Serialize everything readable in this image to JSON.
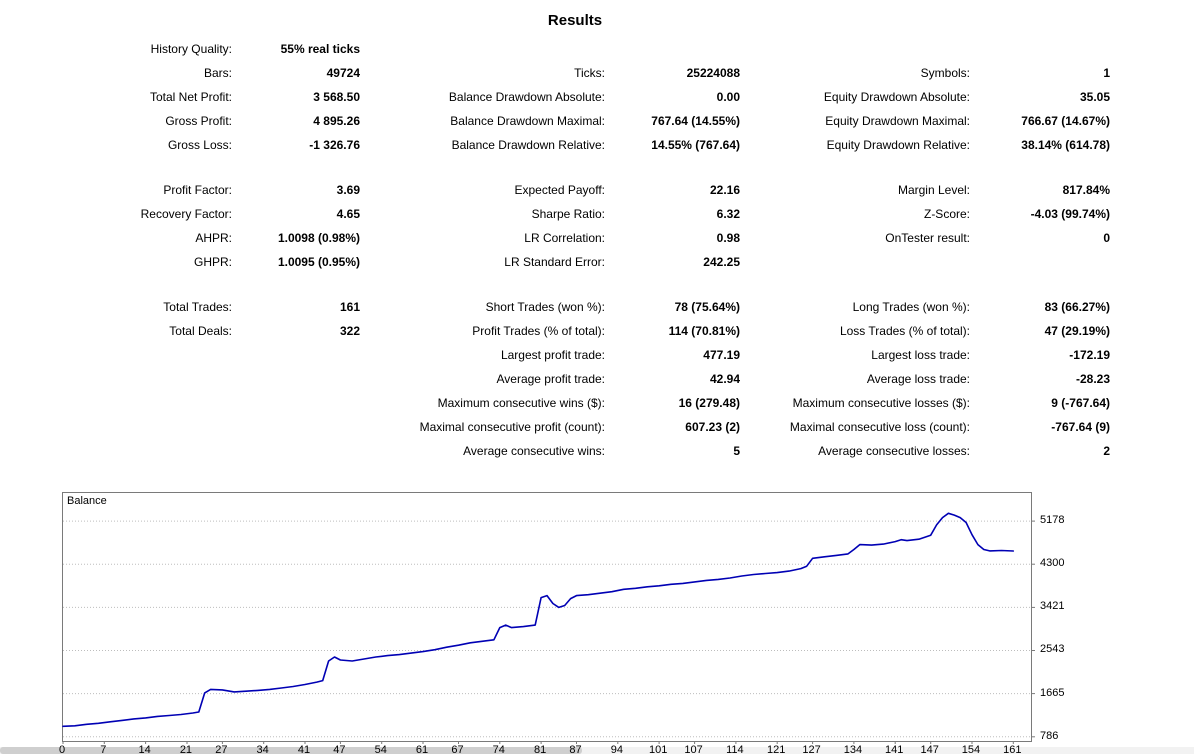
{
  "title": "Results",
  "stats_rows": [
    [
      "History Quality:",
      "55% real ticks",
      "",
      "",
      "",
      ""
    ],
    [
      "Bars:",
      "49724",
      "Ticks:",
      "25224088",
      "Symbols:",
      "1"
    ],
    [
      "Total Net Profit:",
      "3 568.50",
      "Balance Drawdown Absolute:",
      "0.00",
      "Equity Drawdown Absolute:",
      "35.05"
    ],
    [
      "Gross Profit:",
      "4 895.26",
      "Balance Drawdown Maximal:",
      "767.64 (14.55%)",
      "Equity Drawdown Maximal:",
      "766.67 (14.67%)"
    ],
    [
      "Gross Loss:",
      "-1 326.76",
      "Balance Drawdown Relative:",
      "14.55% (767.64)",
      "Equity Drawdown Relative:",
      "38.14% (614.78)"
    ],
    [
      "",
      "",
      "",
      "",
      "",
      ""
    ],
    [
      "Profit Factor:",
      "3.69",
      "Expected Payoff:",
      "22.16",
      "Margin Level:",
      "817.84%"
    ],
    [
      "Recovery Factor:",
      "4.65",
      "Sharpe Ratio:",
      "6.32",
      "Z-Score:",
      "-4.03 (99.74%)"
    ],
    [
      "AHPR:",
      "1.0098 (0.98%)",
      "LR Correlation:",
      "0.98",
      "OnTester result:",
      "0"
    ],
    [
      "GHPR:",
      "1.0095 (0.95%)",
      "LR Standard Error:",
      "242.25",
      "",
      ""
    ],
    [
      "",
      "",
      "",
      "",
      "",
      ""
    ],
    [
      "Total Trades:",
      "161",
      "Short Trades (won %):",
      "78 (75.64%)",
      "Long Trades (won %):",
      "83 (66.27%)"
    ],
    [
      "Total Deals:",
      "322",
      "Profit Trades (% of total):",
      "114 (70.81%)",
      "Loss Trades (% of total):",
      "47 (29.19%)"
    ],
    [
      "",
      "",
      "Largest profit trade:",
      "477.19",
      "Largest loss trade:",
      "-172.19"
    ],
    [
      "",
      "",
      "Average profit trade:",
      "42.94",
      "Average loss trade:",
      "-28.23"
    ],
    [
      "",
      "",
      "Maximum consecutive wins ($):",
      "16 (279.48)",
      "Maximum consecutive losses ($):",
      "9 (-767.64)"
    ],
    [
      "",
      "",
      "Maximal consecutive profit (count):",
      "607.23 (2)",
      "Maximal consecutive loss (count):",
      "-767.64 (9)"
    ],
    [
      "",
      "",
      "Average consecutive wins:",
      "5",
      "Average consecutive losses:",
      "2"
    ]
  ],
  "chart_data": {
    "type": "line",
    "title": "Balance",
    "xlim": [
      0,
      164
    ],
    "ylim": [
      700,
      5750
    ],
    "x_ticks": [
      0,
      7,
      14,
      21,
      27,
      34,
      41,
      47,
      54,
      61,
      67,
      74,
      81,
      87,
      94,
      101,
      107,
      114,
      121,
      127,
      134,
      141,
      147,
      154,
      161
    ],
    "y_ticks": [
      5178,
      4300,
      3421,
      2543,
      1665,
      786
    ],
    "grid": "horizontal-dotted",
    "grid_color": "#bdbdbd",
    "axis_color": "#7a7a7a",
    "series": [
      {
        "name": "Balance",
        "color": "#0000b4",
        "x": [
          0,
          2,
          4,
          6,
          8,
          10,
          12,
          14,
          16,
          18,
          20,
          22,
          23,
          24,
          25,
          27,
          29,
          31,
          33,
          35,
          37,
          39,
          41,
          43,
          44,
          45,
          46,
          47,
          49,
          51,
          53,
          55,
          57,
          59,
          61,
          63,
          65,
          67,
          69,
          71,
          73,
          74,
          75,
          76,
          78,
          80,
          81,
          82,
          83,
          84,
          85,
          86,
          87,
          89,
          91,
          93,
          95,
          97,
          99,
          101,
          103,
          105,
          107,
          109,
          111,
          113,
          115,
          117,
          119,
          121,
          123,
          125,
          126,
          127,
          129,
          131,
          133,
          134,
          135,
          137,
          139,
          141,
          142,
          143,
          145,
          146,
          147,
          148,
          149,
          150,
          151,
          152,
          153,
          154,
          155,
          156,
          157,
          159,
          161
        ],
        "y": [
          1000,
          1010,
          1040,
          1060,
          1090,
          1120,
          1150,
          1170,
          1200,
          1220,
          1240,
          1270,
          1290,
          1680,
          1750,
          1740,
          1700,
          1715,
          1730,
          1750,
          1780,
          1810,
          1850,
          1900,
          1930,
          2330,
          2410,
          2350,
          2330,
          2370,
          2410,
          2440,
          2460,
          2490,
          2520,
          2560,
          2610,
          2650,
          2700,
          2730,
          2760,
          3010,
          3060,
          3010,
          3030,
          3060,
          3620,
          3660,
          3500,
          3420,
          3460,
          3600,
          3660,
          3680,
          3710,
          3740,
          3790,
          3810,
          3840,
          3860,
          3890,
          3910,
          3940,
          3970,
          3990,
          4020,
          4060,
          4090,
          4110,
          4130,
          4160,
          4210,
          4260,
          4420,
          4450,
          4480,
          4510,
          4600,
          4700,
          4690,
          4710,
          4760,
          4800,
          4780,
          4810,
          4850,
          4890,
          5100,
          5250,
          5336,
          5300,
          5250,
          5150,
          4900,
          4700,
          4600,
          4570,
          4580,
          4569
        ]
      }
    ]
  }
}
